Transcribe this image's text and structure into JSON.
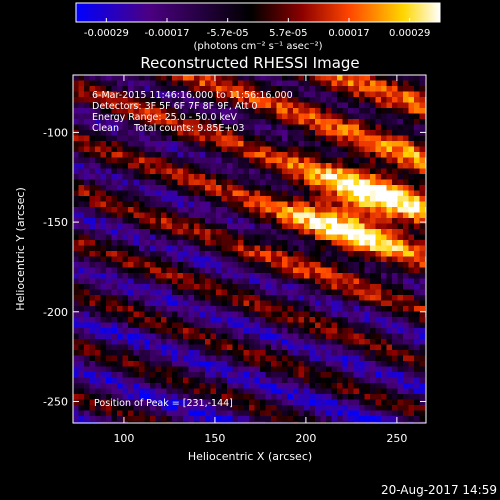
{
  "chart_data": {
    "type": "heatmap",
    "title": "Reconstructed RHESSI Image",
    "xlabel": "Heliocentric X (arcsec)",
    "ylabel": "Heliocentric Y (arcsec)",
    "xlim": [
      72,
      266
    ],
    "ylim": [
      -262,
      -68
    ],
    "xticks": [
      100,
      150,
      200,
      250
    ],
    "yticks": [
      -100,
      -150,
      -200,
      -250
    ],
    "colorbar": {
      "range": [
        -0.00029,
        0.00029
      ],
      "tick_labels": [
        "-0.00029",
        "-0.00017",
        "-5.7e-05",
        "5.7e-05",
        "0.00017",
        "0.00029"
      ],
      "unit_label": "(photons cm⁻² s⁻¹ asec⁻²)",
      "colormap": [
        "#0000ff",
        "#4b0082",
        "#000000",
        "#8b0000",
        "#ff4500",
        "#ffd700",
        "#ffffff"
      ]
    },
    "info_lines": [
      "6-Mar-2015 11:46:16.000 to 11:56:16.000",
      "Detectors: 3F 5F 6F 7F 8F 9F, Att 0",
      "Energy Range: 25.0 - 50.0 keV",
      "Clean     Total counts: 9.85E+03"
    ],
    "peak_label": "Position of Peak = [231,-144]",
    "peak_position": [
      231,
      -144
    ],
    "footer_date": "20-Aug-2017 14:59"
  }
}
